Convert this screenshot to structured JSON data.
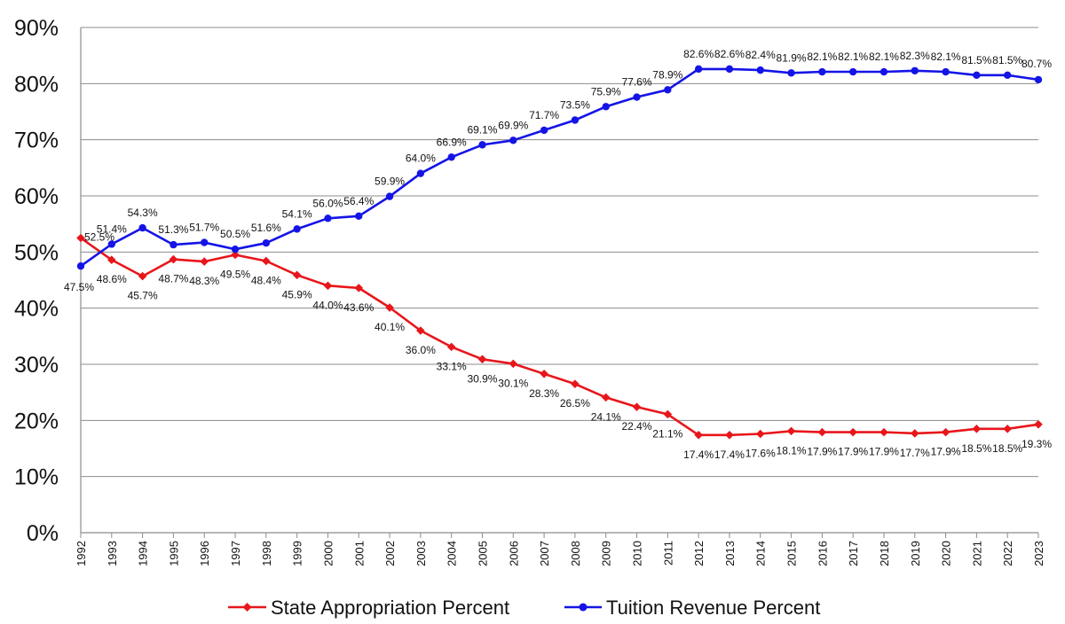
{
  "chart_data": {
    "type": "line",
    "x": [
      "1992",
      "1993",
      "1994",
      "1995",
      "1996",
      "1997",
      "1998",
      "1999",
      "2000",
      "2001",
      "2002",
      "2003",
      "2004",
      "2005",
      "2006",
      "2007",
      "2008",
      "2009",
      "2010",
      "2011",
      "2012",
      "2013",
      "2014",
      "2015",
      "2016",
      "2017",
      "2018",
      "2019",
      "2020",
      "2021",
      "2022",
      "2023"
    ],
    "ylim": [
      0,
      90
    ],
    "yticks": [
      "0%",
      "10%",
      "20%",
      "30%",
      "40%",
      "50%",
      "60%",
      "70%",
      "80%",
      "90%"
    ],
    "grid": "horizontal",
    "legend_position": "bottom",
    "series": [
      {
        "name": "State Appropriation Percent",
        "color": "#e8161b",
        "marker": "diamond",
        "values": [
          52.5,
          48.6,
          45.7,
          48.7,
          48.3,
          49.5,
          48.4,
          45.9,
          44.0,
          43.6,
          40.1,
          36.0,
          33.1,
          30.9,
          30.1,
          28.3,
          26.5,
          24.1,
          22.4,
          21.1,
          17.4,
          17.4,
          17.6,
          18.1,
          17.9,
          17.9,
          17.9,
          17.7,
          17.9,
          18.5,
          18.5,
          19.3
        ],
        "labels": [
          "52.5%",
          "48.6%",
          "45.7%",
          "48.7%",
          "48.3%",
          "49.5%",
          "48.4%",
          "45.9%",
          "44.0%",
          "43.6%",
          "40.1%",
          "36.0%",
          "33.1%",
          "30.9%",
          "30.1%",
          "28.3%",
          "26.5%",
          "24.1%",
          "22.4%",
          "21.1%",
          "17.4%",
          "17.4%",
          "17.6%",
          "18.1%",
          "17.9%",
          "17.9%",
          "17.9%",
          "17.7%",
          "17.9%",
          "18.5%",
          "18.5%",
          "19.3%"
        ]
      },
      {
        "name": "Tuition Revenue Percent",
        "color": "#1414e6",
        "marker": "circle",
        "values": [
          47.5,
          51.4,
          54.3,
          51.3,
          51.7,
          50.5,
          51.6,
          54.1,
          56.0,
          56.4,
          59.9,
          64.0,
          66.9,
          69.1,
          69.9,
          71.7,
          73.5,
          75.9,
          77.6,
          78.9,
          82.6,
          82.6,
          82.4,
          81.9,
          82.1,
          82.1,
          82.1,
          82.3,
          82.1,
          81.5,
          81.5,
          80.7
        ],
        "labels": [
          "47.5%",
          "51.4%",
          "54.3%",
          "51.3%",
          "51.7%",
          "50.5%",
          "51.6%",
          "54.1%",
          "56.0%",
          "56.4%",
          "59.9%",
          "64.0%",
          "66.9%",
          "69.1%",
          "69.9%",
          "71.7%",
          "73.5%",
          "75.9%",
          "77.6%",
          "78.9%",
          "82.6%",
          "82.6%",
          "82.4%",
          "81.9%",
          "82.1%",
          "82.1%",
          "82.1%",
          "82.3%",
          "82.1%",
          "81.5%",
          "81.5%",
          "80.7%"
        ]
      }
    ]
  }
}
